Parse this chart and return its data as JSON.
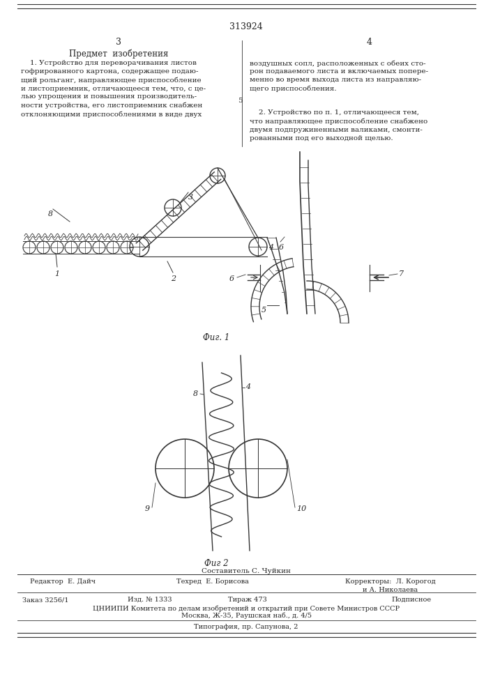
{
  "page_number": "313924",
  "col_left": "3",
  "col_right": "4",
  "title_left": "Предмет  изобретения",
  "text_left_1": "    1. Устройство для переворачивания листов\nгофрированного картона, содержащее подаю-\nщий рольганг, направляющее приспособление\nи листоприемник, отличающееся тем, что, с це-\nлью упрощения и повышения производитель-\nности устройства, его листоприемник снабжен\nотклоняющими приспособлениями в виде двух",
  "text_right_1": "воздушных сопл, расположенных с обеих сто-\nрон подаваемого листа и включаемых попере-\nменно во время выхода листа из направляю-\nщего приспособления.",
  "text_right_2": "    2. Устройство по п. 1, отличающееся тем,\nчто направляющее приспособление снабжено\nдвумя подпружиненными валиками, смонти-\nрованными под его выходной щелью.",
  "fig1_label": "Фиг. 1",
  "fig2_label": "Фиг 2",
  "footer_editor": "Редактор  Е. Дайч",
  "footer_tech": "Техред  Е. Борисова",
  "footer_correctors": "Корректоры:  Л. Корогод\nи А. Николаева",
  "footer_order": "Заказ 3256/1",
  "footer_publ": "Изд. № 1333",
  "footer_circulation": "Тираж 473",
  "footer_podpisnoe": "Подписное",
  "footer_org": "ЦНИИПИ Комитета по делам изобретений и открытий при Совете Министров СССР",
  "footer_address": "Москва, Ж-35, Раушская наб., д. 4/5",
  "footer_print": "Типография, пр. Сапунова, 2",
  "compositor": "Составитель С. Чуйкин",
  "bg_color": "#ffffff",
  "line_color": "#333333",
  "text_color": "#222222"
}
